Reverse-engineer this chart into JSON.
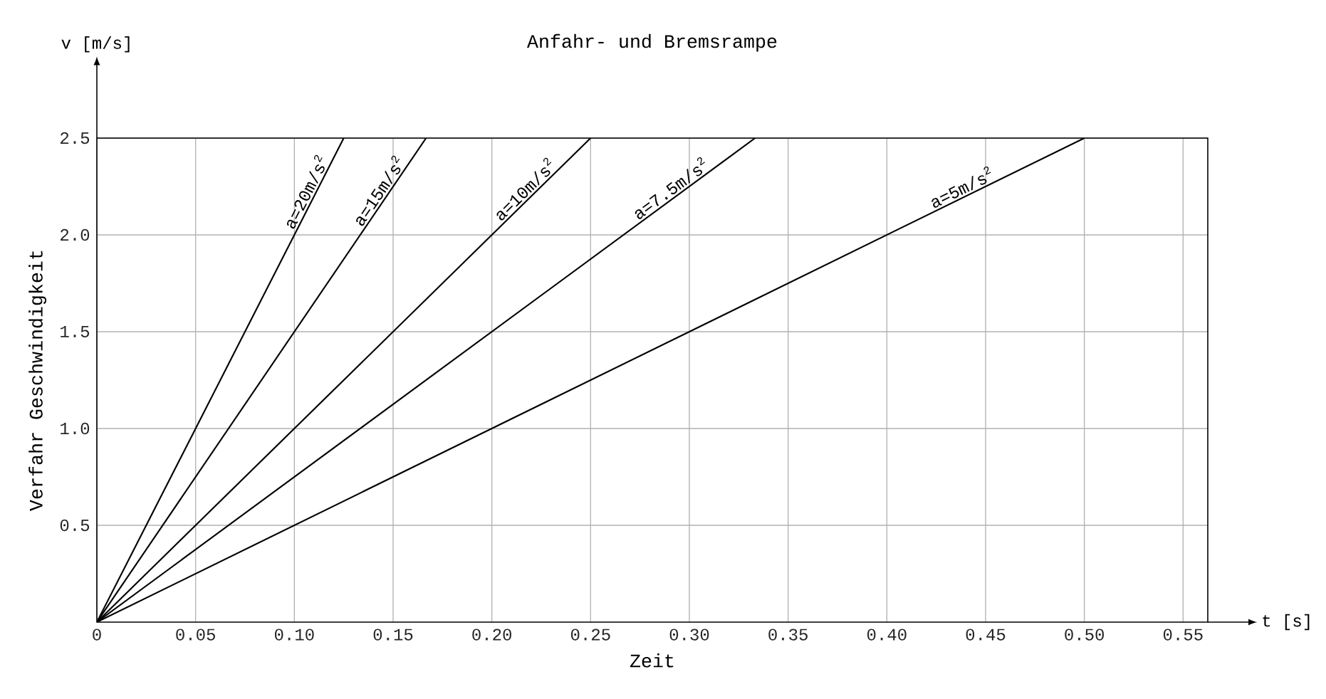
{
  "chart_data": {
    "type": "line",
    "title": "Anfahr- und Bremsrampe",
    "xlabel": "Zeit",
    "ylabel": "Verfahr Geschwindigkeit",
    "annotations": [
      "v [m/s]",
      "t [s]"
    ],
    "series": [
      {
        "name": "a=20m/s$^{2}$",
        "color": "#000000",
        "x": [
          0,
          0.125
        ],
        "values": [
          0,
          2.5
        ]
      },
      {
        "name": "a=15m/s$^{2}$",
        "color": "#000000",
        "x": [
          0,
          0.1667
        ],
        "values": [
          0,
          2.5
        ]
      },
      {
        "name": "a=10m/s$^{2}$",
        "color": "#000000",
        "x": [
          0,
          0.25
        ],
        "values": [
          0,
          2.5
        ]
      },
      {
        "name": "a=7.5m/s$^{2}$",
        "color": "#000000",
        "x": [
          0,
          0.3333
        ],
        "values": [
          0,
          2.5
        ]
      },
      {
        "name": "a=5m/s$^{2}$",
        "color": "#000000",
        "x": [
          0,
          0.5
        ],
        "values": [
          0,
          2.5
        ]
      }
    ],
    "xlim": [
      0,
      0.5625
    ],
    "ylim": [
      0,
      2.5
    ],
    "xticks": [
      0,
      0.05,
      {
        "value": 0.1,
        "label": "0.10"
      },
      0.15,
      {
        "value": 0.2,
        "label": "0.20"
      },
      0.25,
      {
        "value": 0.3,
        "label": "0.30"
      },
      0.35,
      {
        "value": 0.4,
        "label": "0.40"
      },
      0.45,
      {
        "value": 0.5,
        "label": "0.50"
      },
      0.55
    ],
    "yticks": [
      0.5,
      {
        "value": 1,
        "label": "1.0"
      },
      1.5,
      {
        "value": 2,
        "label": "2.0"
      },
      2.5
    ],
    "grid": true,
    "legend": false,
    "marker": "none",
    "line_style": "solid"
  }
}
